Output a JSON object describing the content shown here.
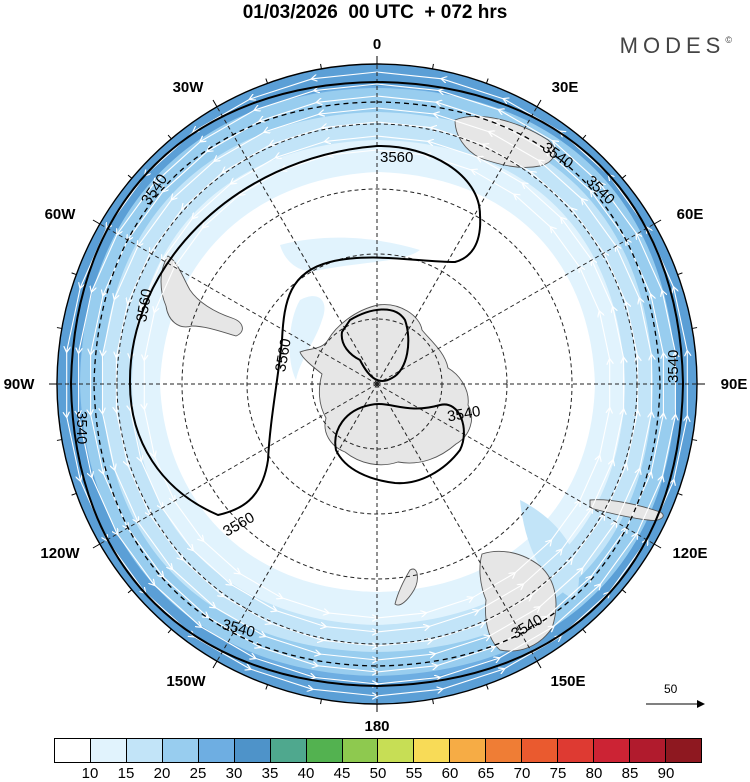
{
  "title": "01/03/2026  00 UTC  + 072 hrs",
  "logo": "MODES",
  "logo_mark": "©",
  "map": {
    "projection": "south-polar-stereographic",
    "longitude_labels": [
      {
        "text": "0",
        "lon": 0
      },
      {
        "text": "30E",
        "lon": 30
      },
      {
        "text": "60E",
        "lon": 60
      },
      {
        "text": "90E",
        "lon": 90
      },
      {
        "text": "120E",
        "lon": 120
      },
      {
        "text": "150E",
        "lon": 150
      },
      {
        "text": "180",
        "lon": 180
      },
      {
        "text": "150W",
        "lon": -150
      },
      {
        "text": "120W",
        "lon": -120
      },
      {
        "text": "90W",
        "lon": -90
      },
      {
        "text": "60W",
        "lon": -60
      },
      {
        "text": "30W",
        "lon": -30
      }
    ],
    "contour_labels": [
      "3560",
      "3540",
      "3540",
      "3560",
      "3560",
      "3560",
      "3540",
      "3540",
      "3540",
      "3540",
      "3540",
      "3540"
    ],
    "land_color": "#e6e6e6",
    "coast_color": "#555555"
  },
  "colorbar": {
    "colors": [
      "#ffffff",
      "#e1f3fd",
      "#c2e4f8",
      "#98cdef",
      "#6eaee2",
      "#4e93c9",
      "#4fa88e",
      "#53b250",
      "#8ec94f",
      "#c7de55",
      "#f8db57",
      "#f6ac45",
      "#ef7d35",
      "#ea5a2f",
      "#de3a32",
      "#cc2334",
      "#b11b2d",
      "#8e1820"
    ],
    "labels": [
      "10",
      "15",
      "20",
      "25",
      "30",
      "35",
      "40",
      "45",
      "50",
      "55",
      "60",
      "65",
      "70",
      "75",
      "80",
      "85",
      "90"
    ]
  },
  "reference_vector": {
    "value": "50"
  }
}
